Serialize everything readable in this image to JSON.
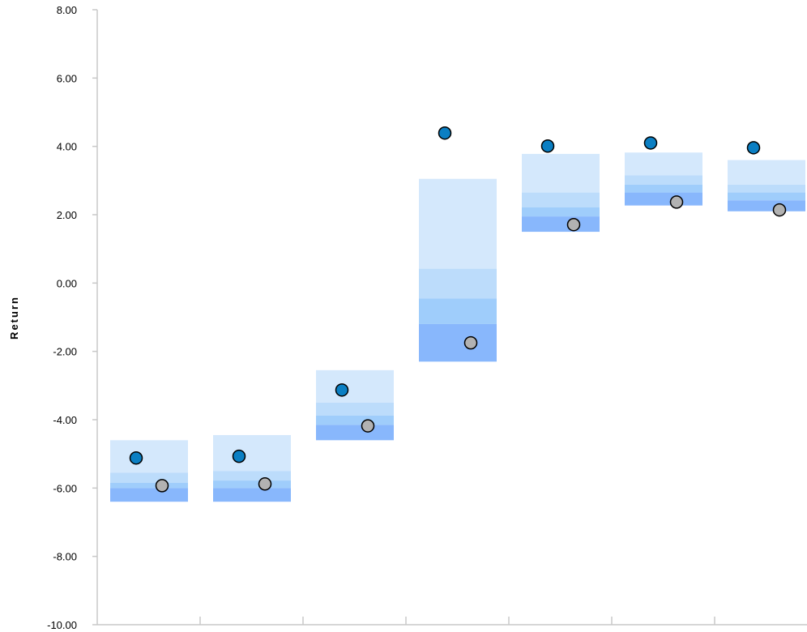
{
  "chart_data": {
    "type": "floating-bar-with-markers",
    "title": "",
    "xlabel": "",
    "ylabel": "Return",
    "ylim": [
      -10,
      8
    ],
    "y_ticks": [
      "8.00",
      "6.00",
      "4.00",
      "2.00",
      "0.00",
      "-2.00",
      "-4.00",
      "-6.00",
      "-8.00",
      "-10.00"
    ],
    "y_tick_values": [
      8,
      6,
      4,
      2,
      0,
      -2,
      -4,
      -6,
      -8,
      -10
    ],
    "x_tick_labels": [
      "",
      "",
      "",
      "",
      "",
      "",
      ""
    ],
    "grid": false,
    "legend": "none",
    "band_colors": [
      "#d4e8fc",
      "#bcdcfb",
      "#9fcdfb",
      "#88b7fc"
    ],
    "marker_colors": {
      "primary": "#0b7fc3",
      "secondary": "#b2b2b2"
    },
    "groups": [
      {
        "bands": [
          -4.6,
          -5.55,
          -5.85,
          -6.0,
          -6.4
        ],
        "primary": -5.12,
        "secondary": -5.93
      },
      {
        "bands": [
          -4.45,
          -5.5,
          -5.78,
          -6.0,
          -6.4
        ],
        "primary": -5.07,
        "secondary": -5.88
      },
      {
        "bands": [
          -2.55,
          -3.5,
          -3.88,
          -4.15,
          -4.6
        ],
        "primary": -3.13,
        "secondary": -4.18
      },
      {
        "bands": [
          3.05,
          0.42,
          -0.45,
          -1.2,
          -2.3
        ],
        "primary": 4.39,
        "secondary": -1.75
      },
      {
        "bands": [
          3.78,
          2.65,
          2.22,
          1.95,
          1.5
        ],
        "primary": 4.01,
        "secondary": 1.71
      },
      {
        "bands": [
          3.82,
          3.15,
          2.88,
          2.65,
          2.27
        ],
        "primary": 4.1,
        "secondary": 2.37
      },
      {
        "bands": [
          3.6,
          2.88,
          2.65,
          2.42,
          2.1
        ],
        "primary": 3.96,
        "secondary": 2.14
      }
    ]
  }
}
